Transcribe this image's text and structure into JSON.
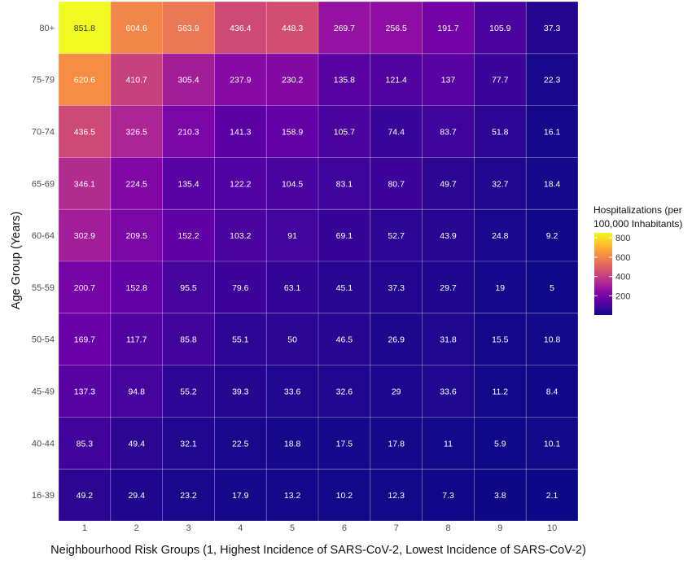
{
  "chart_data": {
    "type": "heatmap",
    "title": "",
    "xlabel": "Neighbourhood Risk Groups (1, Highest Incidence of SARS-CoV-2, Lowest Incidence of SARS-CoV-2)",
    "ylabel": "Age Group (Years)",
    "x_categories": [
      "1",
      "2",
      "3",
      "4",
      "5",
      "6",
      "7",
      "8",
      "9",
      "10"
    ],
    "y_categories": [
      "80+",
      "75-79",
      "70-74",
      "65-69",
      "60-64",
      "55-59",
      "50-54",
      "45-49",
      "40-44",
      "16-39"
    ],
    "values": [
      [
        851.8,
        604.6,
        563.9,
        436.4,
        448.3,
        269.7,
        256.5,
        191.7,
        105.9,
        37.3
      ],
      [
        620.6,
        410.7,
        305.4,
        237.9,
        230.2,
        135.8,
        121.4,
        137,
        77.7,
        22.3
      ],
      [
        436.5,
        326.5,
        210.3,
        141.3,
        158.9,
        105.7,
        74.4,
        83.7,
        51.8,
        16.1
      ],
      [
        346.1,
        224.5,
        135.4,
        122.2,
        104.5,
        83.1,
        80.7,
        49.7,
        32.7,
        18.4
      ],
      [
        302.9,
        209.5,
        152.2,
        103.2,
        91,
        69.1,
        52.7,
        43.9,
        24.8,
        9.2
      ],
      [
        200.7,
        152.8,
        95.5,
        79.6,
        63.1,
        45.1,
        37.3,
        29.7,
        19,
        5
      ],
      [
        169.7,
        117.7,
        85.8,
        55.1,
        50,
        46.5,
        26.9,
        31.8,
        15.5,
        10.8
      ],
      [
        137.3,
        94.8,
        55.2,
        39.3,
        33.6,
        32.6,
        29,
        33.6,
        11.2,
        8.4
      ],
      [
        85.3,
        49.4,
        32.1,
        22.5,
        18.8,
        17.5,
        17.8,
        11,
        5.9,
        10.1
      ],
      [
        49.2,
        29.4,
        23.2,
        17.9,
        13.2,
        10.2,
        12.3,
        7.3,
        3.8,
        2.1
      ]
    ],
    "legend": {
      "title_lines": [
        "Hospitalizations (per",
        "100,000 Inhabitants)"
      ],
      "ticks": [
        200,
        400,
        600,
        800
      ],
      "range": [
        2.1,
        851.8
      ],
      "placement": "right"
    },
    "colormap": "plasma",
    "grid": true
  }
}
